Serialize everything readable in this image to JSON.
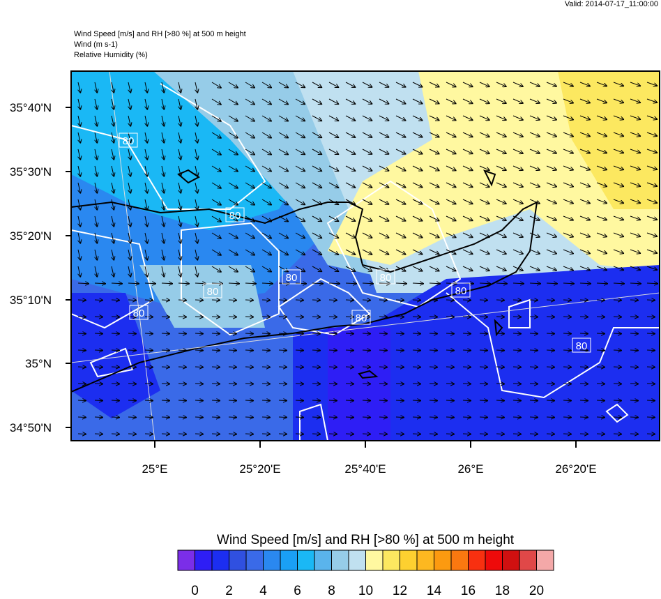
{
  "valid": "Valid: 2014-07-17_11:00:00",
  "header": {
    "lines": [
      "Wind Speed [m/s] and RH [>80 %] at 500 m height",
      "Wind   (m s-1)",
      "Relative Humidity   (%)"
    ]
  },
  "map": {
    "lat_labels": [
      "35°40'N",
      "35°30'N",
      "35°20'N",
      "35°10'N",
      "35°N",
      "34°50'N"
    ],
    "lon_labels": [
      "25°E",
      "25°20'E",
      "25°40'E",
      "26°E",
      "26°20'E"
    ],
    "contour_labels": [
      "80",
      "80",
      "80",
      "80",
      "80",
      "80",
      "80",
      "80",
      "80"
    ]
  },
  "colorbar": {
    "title": "Wind Speed [m/s] and RH [>80 %] at 500 m height",
    "colors": [
      "#7b2ee8",
      "#2e1ef5",
      "#1c2ef0",
      "#3050e0",
      "#3a6ae8",
      "#2a88f0",
      "#1aa0f5",
      "#1ab8f5",
      "#5ab4ec",
      "#96cce8",
      "#c0e0f0",
      "#fff8a0",
      "#fce860",
      "#fdd030",
      "#fdb820",
      "#fc9a10",
      "#fa7810",
      "#f83010",
      "#ee0a0a",
      "#d01010",
      "#e04848",
      "#f4a8a8"
    ],
    "ticks": [
      0,
      2,
      4,
      6,
      8,
      10,
      12,
      14,
      16,
      18,
      20
    ]
  }
}
